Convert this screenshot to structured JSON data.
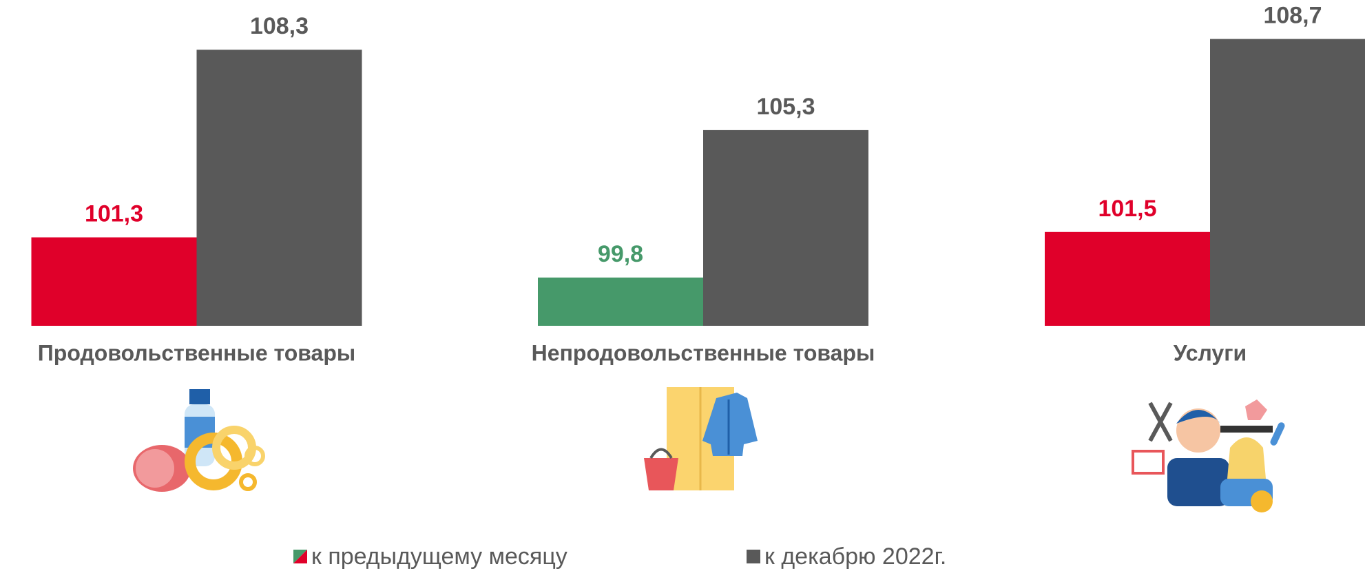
{
  "chart_data": {
    "type": "bar",
    "categories": [
      "Продовольственные товары",
      "Непродовольственные товары",
      "Услуги"
    ],
    "series": [
      {
        "name": "к предыдущему месяцу",
        "colors": [
          "#e0002a",
          "#46996a",
          "#e0002a"
        ],
        "values": [
          101.3,
          99.8,
          101.5
        ],
        "value_labels": [
          "101,3",
          "99,8",
          "101,5"
        ]
      },
      {
        "name": "к декабрю 2022г.",
        "color": "#595959",
        "values": [
          108.3,
          105.3,
          108.7
        ],
        "value_labels": [
          "108,3",
          "105,3",
          "108,7"
        ]
      }
    ],
    "ylim": [
      98,
      110
    ]
  }
}
